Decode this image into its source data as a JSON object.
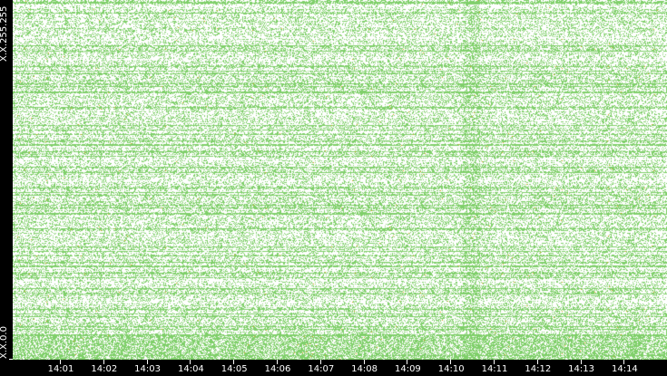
{
  "chart_data": {
    "type": "scatter",
    "description_hint": "",
    "y_tick_labels": [
      "X.X.255.255",
      "X.X.0.0"
    ],
    "x_tick_labels": [
      "14:01",
      "14:02",
      "14:03",
      "14:04",
      "14:05",
      "14:06",
      "14:07",
      "14:08",
      "14:09",
      "14:10",
      "14:11",
      "14:12",
      "14:13",
      "14:14"
    ],
    "colors": {
      "point": "#7fcf6a",
      "dense": "#5fbf4a",
      "highlight": "#e0a020",
      "background": "#ffffff",
      "frame": "#000000"
    },
    "grid": false,
    "legend": "none"
  }
}
